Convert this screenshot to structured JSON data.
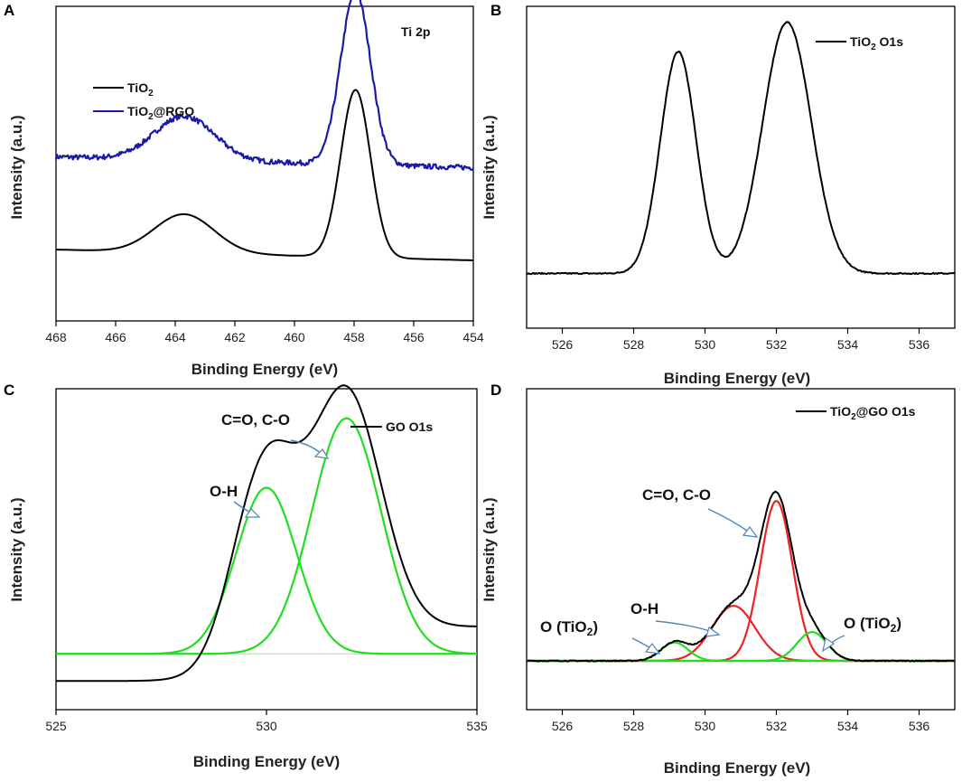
{
  "chart_data": [
    {
      "panel": "A",
      "type": "line",
      "title": "Ti 2p",
      "xlabel": "Binding Energy (eV)",
      "ylabel": "Intensity (a.u.)",
      "xlim": [
        468,
        454
      ],
      "x_reversed": true,
      "ylim": [
        0,
        1
      ],
      "xticks": [
        "468",
        "466",
        "464",
        "462",
        "460",
        "458",
        "456",
        "454"
      ],
      "xtick_values": [
        468,
        466,
        464,
        462,
        460,
        458,
        456,
        454
      ],
      "legend": [
        "TiO2",
        "TiO2@RGO"
      ],
      "series": [
        {
          "name": "TiO2",
          "color": "#000000",
          "noise": 0,
          "baseline": 0.2,
          "slope": 0.003,
          "peaks": [
            {
              "center": 457.95,
              "width": 0.5,
              "height": 0.65
            },
            {
              "center": 463.7,
              "width": 1.0,
              "height": 0.15
            }
          ]
        },
        {
          "name": "TiO2@RGO",
          "color": "#1a1aa8",
          "noise": 0.01,
          "baseline": 0.56,
          "slope": 0.003,
          "peaks": [
            {
              "center": 457.95,
              "width": 0.5,
              "height": 0.67
            },
            {
              "center": 463.7,
              "width": 1.0,
              "height": 0.17
            }
          ]
        }
      ]
    },
    {
      "panel": "B",
      "type": "line",
      "legend": [
        "TiO2  O1s"
      ],
      "xlabel": "Binding Energy (eV)",
      "ylabel": "Intensity (a.u.)",
      "xlim": [
        525,
        537
      ],
      "ylim": [
        0,
        1
      ],
      "xticks": [
        "526",
        "528",
        "530",
        "532",
        "534",
        "536"
      ],
      "xtick_values": [
        526,
        528,
        530,
        532,
        534,
        536
      ],
      "series": [
        {
          "name": "TiO2  O1s",
          "color": "#000000",
          "noise": 0.002,
          "baseline": 0.13,
          "slope": 0,
          "peaks": [
            {
              "center": 529.25,
              "width": 0.5,
              "height": 0.75
            },
            {
              "center": 532.3,
              "width": 0.68,
              "height": 0.85
            }
          ]
        }
      ]
    },
    {
      "panel": "C",
      "type": "line",
      "legend": [
        "GO O1s"
      ],
      "xlabel": "Binding Energy (eV)",
      "ylabel": "Intensity (a.u.)",
      "xlim": [
        525,
        535
      ],
      "ylim": [
        0,
        1
      ],
      "xticks": [
        "525",
        "530",
        "535"
      ],
      "xtick_values": [
        525,
        530,
        535
      ],
      "annotations": [
        {
          "text": "C=O, C-O"
        },
        {
          "text": "O-H"
        }
      ],
      "series": [
        {
          "name": "GO O1s",
          "color": "#000000",
          "noise": 0,
          "envelope": true,
          "step_center": 528.9,
          "step_width": 0.35,
          "low": 0.08,
          "high": 0.26,
          "fit_series": [
            "O-H",
            "C=O, C-O"
          ]
        },
        {
          "name": "O-H",
          "color": "#22dd22",
          "noise": 0,
          "baseline": 0.17,
          "slope": 0,
          "peaks": [
            {
              "center": 530.0,
              "width": 0.72,
              "height": 0.55
            }
          ]
        },
        {
          "name": "C=O, C-O",
          "color": "#22dd22",
          "noise": 0,
          "baseline": 0.17,
          "slope": 0,
          "peaks": [
            {
              "center": 531.9,
              "width": 0.82,
              "height": 0.78
            }
          ]
        }
      ]
    },
    {
      "panel": "D",
      "type": "line",
      "legend": [
        "TiO2@GO O1s"
      ],
      "xlabel": "Binding Energy (eV)",
      "ylabel": "Intensity (a.u.)",
      "xlim": [
        525,
        537
      ],
      "ylim": [
        0,
        1
      ],
      "xticks": [
        "526",
        "528",
        "530",
        "532",
        "534",
        "536"
      ],
      "xtick_values": [
        526,
        528,
        530,
        532,
        534,
        536
      ],
      "annotations": [
        {
          "text": "C=O, C-O"
        },
        {
          "text": "O-H"
        },
        {
          "text": "O (TiO2)"
        },
        {
          "text": "O (TiO2)"
        }
      ],
      "series": [
        {
          "name": "TiO2@GO O1s",
          "color": "#000000",
          "noise": 0.002,
          "envelope": true,
          "baseline": 0.1,
          "fit_series": [
            "O-H",
            "C=O, C-O",
            "O (TiO2) 529",
            "O (TiO2) 533"
          ]
        },
        {
          "name": "O-H",
          "color": "#ee2222",
          "noise": 0,
          "baseline": 0.1,
          "slope": 0,
          "peaks": [
            {
              "center": 530.8,
              "width": 0.6,
              "height": 0.21
            }
          ]
        },
        {
          "name": "C=O, C-O",
          "color": "#ee2222",
          "noise": 0,
          "baseline": 0.1,
          "slope": 0,
          "peaks": [
            {
              "center": 532.0,
              "width": 0.45,
              "height": 0.61
            }
          ]
        },
        {
          "name": "O (TiO2) 529",
          "color": "#22dd22",
          "noise": 0,
          "baseline": 0.1,
          "slope": 0,
          "peaks": [
            {
              "center": 529.15,
              "width": 0.38,
              "height": 0.07
            }
          ]
        },
        {
          "name": "O (TiO2) 533",
          "color": "#22dd22",
          "noise": 0,
          "baseline": 0.1,
          "slope": 0,
          "peaks": [
            {
              "center": 533.0,
              "width": 0.42,
              "height": 0.11
            }
          ]
        }
      ]
    }
  ],
  "labels": {
    "panel_a": "A",
    "panel_b": "B",
    "panel_c": "C",
    "panel_d": "D",
    "x_title": "Binding Energy (eV)",
    "y_title": "Intensity (a.u.)",
    "a_title": "Ti 2p",
    "a_legend_1_main": "TiO",
    "a_legend_1_sub": "2",
    "a_legend_2_main": "TiO",
    "a_legend_2_sub": "2",
    "a_legend_2_tail": "@RGO",
    "b_legend_main": "TiO",
    "b_legend_sub": "2",
    "b_legend_tail": "  O1s",
    "c_legend": "GO O1s",
    "c_anno_co": "C=O, C-O",
    "c_anno_oh": "O-H",
    "d_legend_main": "TiO",
    "d_legend_sub": "2",
    "d_legend_tail": "@GO O1s",
    "d_anno_co": "C=O, C-O",
    "d_anno_oh": "O-H",
    "d_anno_tio_left_main": "O (TiO",
    "d_anno_tio_left_sub": "2",
    "d_anno_tio_left_tail": ")",
    "d_anno_tio_right_main": "O (TiO",
    "d_anno_tio_right_sub": "2",
    "d_anno_tio_right_tail": ")"
  }
}
